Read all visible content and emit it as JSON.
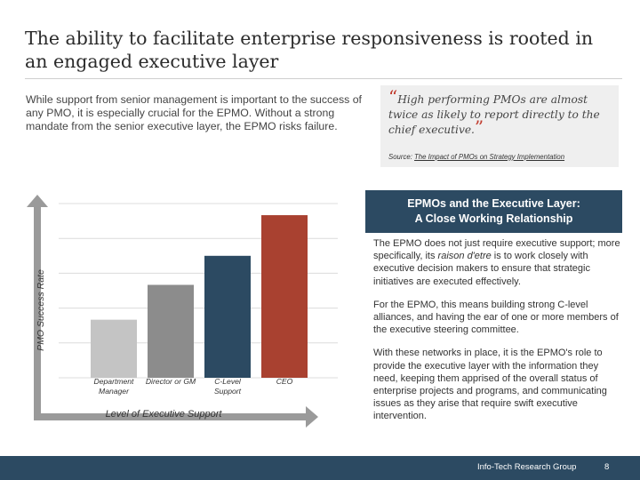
{
  "title": "The ability to facilitate enterprise responsiveness is rooted in an engaged executive layer",
  "intro": "While support from senior management is important to the success of any PMO, it is especially crucial for the EPMO. Without a strong mandate from the senior executive layer, the EPMO risks failure.",
  "quote": {
    "open_mark": "“",
    "text": "High performing PMOs are almost twice as likely to report directly to the chief executive.",
    "close_mark": "”",
    "source_prefix": "Source:",
    "source_link": "The Impact of PMOs on Strategy Implementation"
  },
  "panel": {
    "header_line1": "EPMOs and the Executive Layer:",
    "header_line2": "A Close Working Relationship",
    "p1_before": "The EPMO does not just require executive support; more specifically, its ",
    "p1_em": "raison d'etre",
    "p1_after": " is to work closely with executive decision makers to ensure that strategic initiatives are executed effectively.",
    "p2": "For the EPMO, this means building strong C-level alliances, and having the ear of one or more members of the executive steering committee.",
    "p3": "With these networks in place, it is the EPMO's role to provide the executive layer with the information they need, keeping them apprised of the overall status of enterprise projects and programs, and communicating issues as they arise that require swift executive intervention."
  },
  "chart_data": {
    "type": "bar",
    "xlabel": "Level of Executive Support",
    "ylabel": "PMO Success Rate",
    "categories": [
      {
        "line1": "Department",
        "line2": "Manager"
      },
      {
        "line1": "Director or GM",
        "line2": ""
      },
      {
        "line1": "C-Level",
        "line2": "Support"
      },
      {
        "line1": "CEO",
        "line2": ""
      }
    ],
    "values": [
      1,
      1.6,
      2.1,
      2.8
    ],
    "ylim": [
      0,
      3
    ],
    "colors": [
      "#c4c4c4",
      "#8c8c8c",
      "#2c4a62",
      "#a94130"
    ],
    "grid": true
  },
  "footer": {
    "label": "Info-Tech Research Group",
    "page": "8"
  }
}
